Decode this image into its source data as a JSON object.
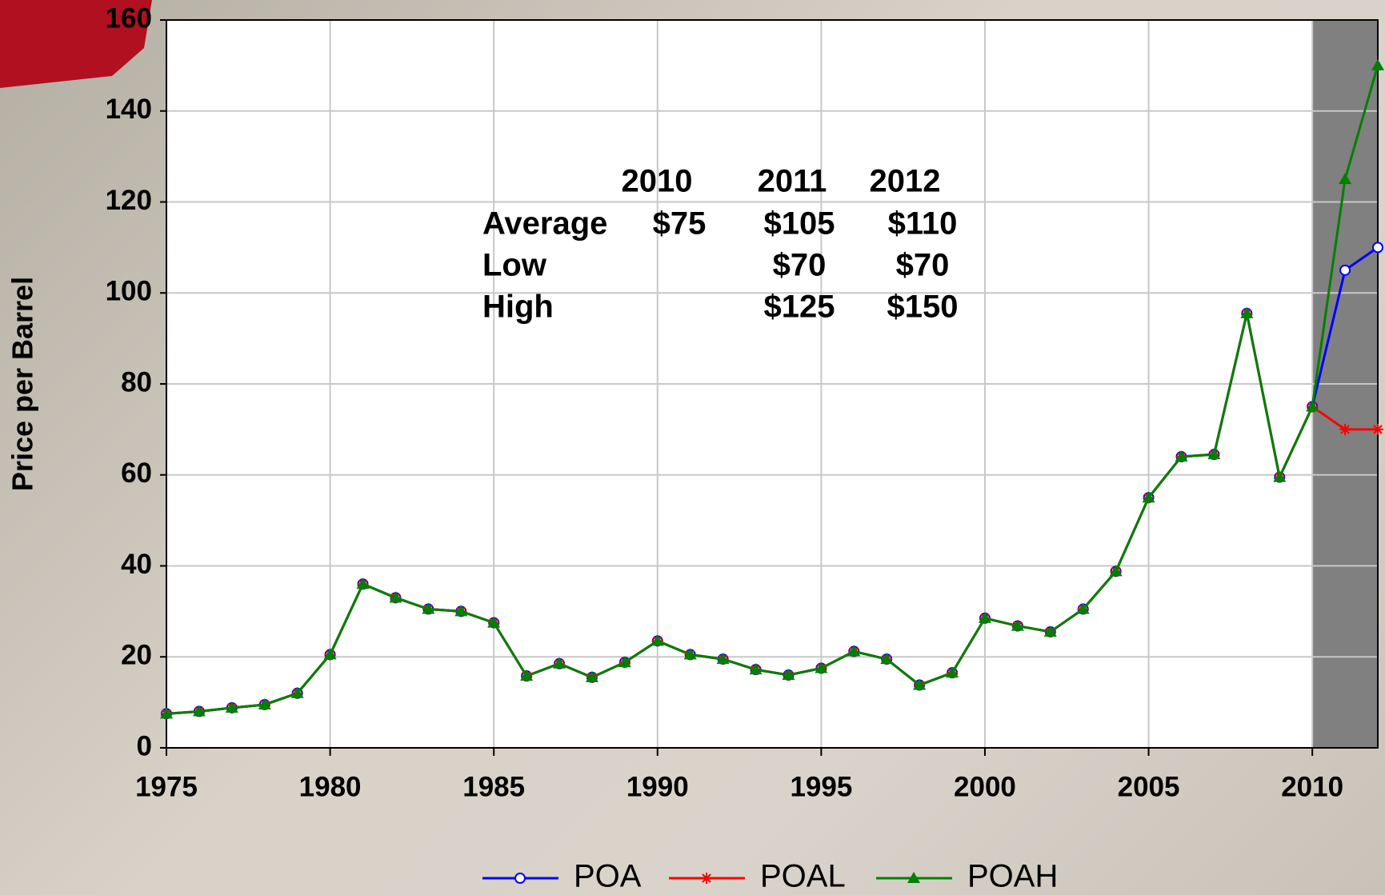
{
  "chart_data": {
    "type": "line",
    "y_label": "Price per Barrel",
    "x": [
      1975,
      1976,
      1977,
      1978,
      1979,
      1980,
      1981,
      1982,
      1983,
      1984,
      1985,
      1986,
      1987,
      1988,
      1989,
      1990,
      1991,
      1992,
      1993,
      1994,
      1995,
      1996,
      1997,
      1998,
      1999,
      2000,
      2001,
      2002,
      2003,
      2004,
      2005,
      2006,
      2007,
      2008,
      2009,
      2010,
      2011,
      2012
    ],
    "series": [
      {
        "name": "POA",
        "color": "#0000ff",
        "marker": "circle",
        "values": [
          7.5,
          8,
          8.8,
          9.5,
          12,
          20.5,
          36,
          33,
          30.5,
          30,
          27.5,
          15.8,
          18.5,
          15.5,
          18.8,
          23.5,
          20.5,
          19.5,
          17.2,
          16,
          17.5,
          21.2,
          19.5,
          13.8,
          16.5,
          28.5,
          26.8,
          25.5,
          30.5,
          38.8,
          55,
          64,
          64.5,
          95.5,
          59.5,
          75,
          105,
          110
        ]
      },
      {
        "name": "POAL",
        "color": "#ff0000",
        "marker": "asterisk",
        "values": [
          7.5,
          8,
          8.8,
          9.5,
          12,
          20.5,
          36,
          33,
          30.5,
          30,
          27.5,
          15.8,
          18.5,
          15.5,
          18.8,
          23.5,
          20.5,
          19.5,
          17.2,
          16,
          17.5,
          21.2,
          19.5,
          13.8,
          16.5,
          28.5,
          26.8,
          25.5,
          30.5,
          38.8,
          55,
          64,
          64.5,
          95.5,
          59.5,
          75,
          70,
          70
        ]
      },
      {
        "name": "POAH",
        "color": "#008000",
        "marker": "triangle",
        "values": [
          7.5,
          8,
          8.8,
          9.5,
          12,
          20.5,
          36,
          33,
          30.5,
          30,
          27.5,
          15.8,
          18.5,
          15.5,
          18.8,
          23.5,
          20.5,
          19.5,
          17.2,
          16,
          17.5,
          21.2,
          19.5,
          13.8,
          16.5,
          28.5,
          26.8,
          25.5,
          30.5,
          38.8,
          55,
          64,
          64.5,
          95.5,
          59.5,
          75,
          125,
          150
        ]
      }
    ],
    "xlim": [
      1975,
      2012
    ],
    "xticks": [
      1975,
      1980,
      1985,
      1990,
      1995,
      2000,
      2005,
      2010
    ],
    "ylim": [
      0,
      160
    ],
    "yticks": [
      0,
      20,
      40,
      60,
      80,
      100,
      120,
      140,
      160
    ],
    "grid": true,
    "shaded_xrange": [
      2010,
      2012
    ],
    "shade_color": "#808080",
    "legend": "bottom",
    "annotation": {
      "header": [
        "2010",
        "2011",
        "2012"
      ],
      "rows": [
        {
          "label": "Average",
          "values": [
            "$75",
            "$105",
            "$110"
          ]
        },
        {
          "label": "Low",
          "values": [
            null,
            "$70",
            "$70"
          ]
        },
        {
          "label": "High",
          "values": [
            null,
            "$125",
            "$150"
          ]
        }
      ]
    }
  }
}
